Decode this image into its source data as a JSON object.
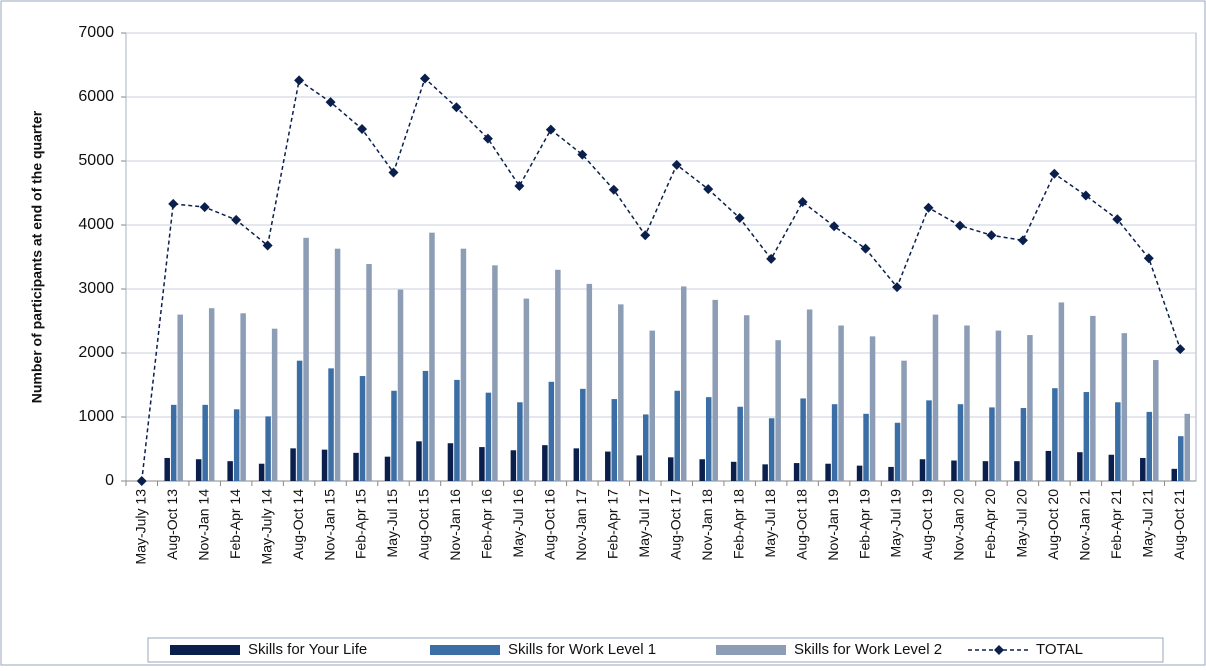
{
  "chart_data": {
    "type": "bar",
    "y_label": "Number of participants at end of the quarter",
    "categories": [
      "May-July 13",
      "Aug-Oct 13",
      "Nov-Jan 14",
      "Feb-Apr 14",
      "May-July 14",
      "Aug-Oct 14",
      "Nov-Jan 15",
      "Feb-Apr 15",
      "May-Jul 15",
      "Aug-Oct 15",
      "Nov-Jan 16",
      "Feb-Apr 16",
      "May-Jul 16",
      "Aug-Oct 16",
      "Nov-Jan 17",
      "Feb-Apr 17",
      "May-Jul 17",
      "Aug-Oct 17",
      "Nov-Jan 18",
      "Feb-Apr 18",
      "May-Jul 18",
      "Aug-Oct 18",
      "Nov-Jan 19",
      "Feb-Apr 19",
      "May-Jul 19",
      "Aug-Oct 19",
      "Nov-Jan 20",
      "Feb-Apr 20",
      "May-Jul 20",
      "Aug-Oct 20",
      "Nov-Jan 21",
      "Feb-Apr 21",
      "May-Jul 21",
      "Aug-Oct 21"
    ],
    "series": [
      {
        "name": "Skills for Your Life",
        "color": "#0b1f4d",
        "type": "bar",
        "values": [
          0,
          360,
          340,
          310,
          270,
          510,
          490,
          440,
          380,
          620,
          590,
          530,
          480,
          560,
          510,
          460,
          400,
          370,
          340,
          300,
          260,
          280,
          270,
          240,
          220,
          340,
          320,
          310,
          310,
          470,
          450,
          410,
          360,
          190
        ]
      },
      {
        "name": "Skills for Work Level 1",
        "color": "#3a6ea5",
        "type": "bar",
        "values": [
          0,
          1190,
          1190,
          1120,
          1010,
          1880,
          1760,
          1640,
          1410,
          1720,
          1580,
          1380,
          1230,
          1550,
          1440,
          1280,
          1040,
          1410,
          1310,
          1160,
          980,
          1290,
          1200,
          1050,
          910,
          1260,
          1200,
          1150,
          1140,
          1450,
          1390,
          1230,
          1080,
          700
        ]
      },
      {
        "name": "Skills for Work Level 2",
        "color": "#8c9db5",
        "type": "bar",
        "values": [
          0,
          2600,
          2700,
          2620,
          2380,
          3800,
          3630,
          3390,
          2990,
          3880,
          3630,
          3370,
          2850,
          3300,
          3080,
          2760,
          2350,
          3040,
          2830,
          2590,
          2200,
          2680,
          2430,
          2260,
          1880,
          2600,
          2430,
          2350,
          2280,
          2790,
          2580,
          2310,
          1890,
          1050
        ]
      },
      {
        "name": "TOTAL",
        "color": "#0b1f4d",
        "type": "line",
        "values": [
          0,
          4330,
          4280,
          4080,
          3680,
          6260,
          5920,
          5500,
          4820,
          6290,
          5840,
          5350,
          4610,
          5490,
          5100,
          4550,
          3840,
          4940,
          4560,
          4110,
          3470,
          4360,
          3980,
          3630,
          3030,
          4270,
          3990,
          3840,
          3760,
          4800,
          4460,
          4090,
          3480,
          2060
        ]
      }
    ],
    "ylim": [
      0,
      7000
    ],
    "yticks": [
      0,
      1000,
      2000,
      3000,
      4000,
      5000,
      6000,
      7000
    ],
    "grid": true,
    "legend": "bottom"
  }
}
